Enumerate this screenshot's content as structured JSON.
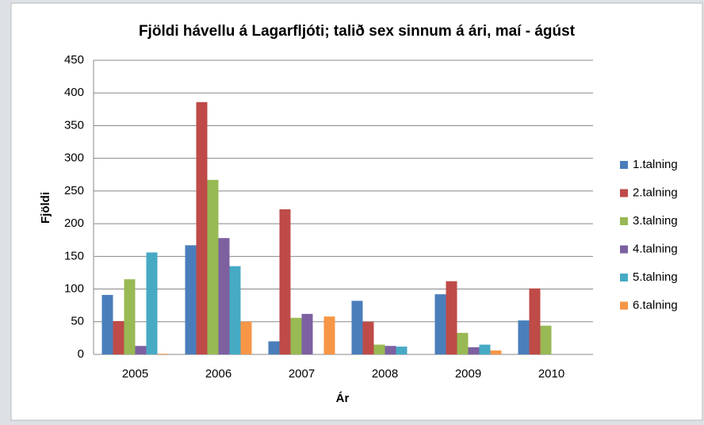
{
  "chart_data": {
    "type": "bar",
    "title": "Fjöldi hávellu á Lagarfljóti; talið sex sinnum á ári, maí - ágúst",
    "x_label": "Ár",
    "y_label": "Fjöldi",
    "categories": [
      "2005",
      "2006",
      "2007",
      "2008",
      "2009",
      "2010"
    ],
    "series": [
      {
        "name": "1.talning",
        "color": "#4a7ebb",
        "values": [
          91,
          167,
          20,
          82,
          92,
          52
        ]
      },
      {
        "name": "2.talning",
        "color": "#be4b48",
        "values": [
          51,
          386,
          222,
          50,
          112,
          101
        ]
      },
      {
        "name": "3.talning",
        "color": "#98b954",
        "values": [
          115,
          267,
          56,
          15,
          33,
          44
        ]
      },
      {
        "name": "4.talning",
        "color": "#7d60a0",
        "values": [
          13,
          178,
          62,
          13,
          11,
          null
        ]
      },
      {
        "name": "5.talning",
        "color": "#46aac5",
        "values": [
          156,
          135,
          null,
          12,
          15,
          null
        ]
      },
      {
        "name": "6.talning",
        "color": "#f79646",
        "values": [
          1,
          50,
          58,
          null,
          6,
          null
        ]
      }
    ],
    "ylim": [
      0,
      450
    ],
    "yticks": [
      0,
      50,
      100,
      150,
      200,
      250,
      300,
      350,
      400,
      450
    ],
    "grid": true,
    "legend": "right"
  }
}
